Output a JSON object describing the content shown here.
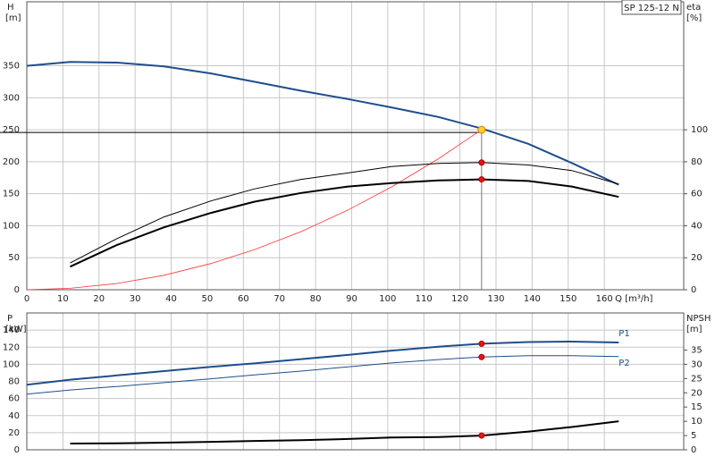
{
  "chart_data": [
    {
      "type": "line",
      "title": "SP 125-12 N",
      "y_label": "H",
      "y_unit": "[m]",
      "y2_label": "eta",
      "y2_unit": "[%]",
      "x_label": "Q [m³/h]",
      "xlim": [
        0,
        182
      ],
      "xticks": [
        0,
        10,
        20,
        30,
        40,
        50,
        60,
        70,
        80,
        90,
        100,
        110,
        120,
        130,
        140,
        150,
        160
      ],
      "ylim": [
        0,
        450
      ],
      "yticks": [
        0,
        50,
        100,
        150,
        200,
        250,
        300,
        350
      ],
      "y2lim": [
        0,
        180
      ],
      "y2ticks": [
        0,
        20,
        40,
        60,
        80,
        100
      ],
      "grid": true,
      "series": [
        {
          "color": "#1f4e8c",
          "width": 2,
          "x": [
            0,
            12,
            25,
            38,
            51,
            63,
            76,
            89,
            101,
            114,
            126,
            139,
            151,
            164
          ],
          "values": [
            350,
            356,
            355,
            349,
            338,
            325,
            311,
            298,
            285,
            270,
            252,
            228,
            198,
            164
          ]
        },
        {
          "color": "#ff3333",
          "width": 0.8,
          "x": [
            0,
            12,
            25,
            38,
            51,
            63,
            76,
            89,
            101,
            114,
            126
          ],
          "values": [
            0,
            2.3,
            9.8,
            22.7,
            40.9,
            62.5,
            90.9,
            124.7,
            160.6,
            204.6,
            250
          ]
        },
        {
          "color": "#000000",
          "width": 1,
          "axis": "y2",
          "x": [
            12,
            25,
            38,
            51,
            63,
            76,
            89,
            101,
            114,
            126,
            139,
            151,
            164
          ],
          "values": [
            16.7,
            32,
            45.5,
            55.5,
            63,
            69,
            73,
            77,
            79,
            79.5,
            78,
            74.5,
            66
          ]
        },
        {
          "color": "#000000",
          "width": 2,
          "axis": "y2",
          "x": [
            12,
            25,
            38,
            51,
            63,
            76,
            89,
            101,
            114,
            126,
            139,
            151,
            164
          ],
          "values": [
            14.4,
            28,
            39,
            48,
            55,
            60.5,
            64.5,
            66.7,
            68.3,
            69,
            68,
            64.5,
            58
          ]
        }
      ],
      "duty_point": {
        "x": 126,
        "y": [
          250
        ],
        "y2": [
          79.5,
          69
        ]
      }
    },
    {
      "type": "line",
      "y_label": "P",
      "y_unit": "[kW]",
      "y2_label": "NPSH",
      "y2_unit": "[m]",
      "xlim": [
        0,
        182
      ],
      "xticks": [
        0,
        10,
        20,
        30,
        40,
        50,
        60,
        70,
        80,
        90,
        100,
        110,
        120,
        130,
        140,
        150,
        160
      ],
      "ylim": [
        0,
        160
      ],
      "yticks": [
        0,
        20,
        40,
        60,
        80,
        100,
        120,
        140
      ],
      "y2lim": [
        0,
        48
      ],
      "y2ticks": [
        0,
        5,
        10,
        15,
        20,
        25,
        30,
        35
      ],
      "grid": true,
      "series": [
        {
          "name": "P1",
          "color": "#1f4e8c",
          "width": 2,
          "x": [
            0,
            12,
            25,
            38,
            51,
            63,
            76,
            89,
            101,
            114,
            126,
            139,
            151,
            164
          ],
          "values": [
            76,
            82,
            87,
            92,
            97,
            101,
            106,
            111,
            116,
            120.6,
            124,
            126,
            126.5,
            125.5
          ]
        },
        {
          "name": "P2",
          "color": "#1f4e8c",
          "width": 1,
          "x": [
            0,
            12,
            25,
            38,
            51,
            63,
            76,
            89,
            101,
            114,
            126,
            139,
            151,
            164
          ],
          "values": [
            65,
            70,
            74,
            78.5,
            83,
            87.5,
            92,
            97,
            101.5,
            105.5,
            108.5,
            110,
            110,
            109
          ]
        },
        {
          "color": "#000000",
          "width": 2,
          "axis": "y2",
          "x": [
            12,
            25,
            38,
            51,
            63,
            76,
            89,
            101,
            114,
            126,
            139,
            151,
            164
          ],
          "values": [
            2.2,
            2.3,
            2.5,
            2.8,
            3.1,
            3.4,
            3.8,
            4.3,
            4.5,
            5,
            6.4,
            8,
            10
          ]
        }
      ],
      "duty_point": {
        "x": 126,
        "y": [
          124,
          108.5
        ],
        "y2": [
          5
        ]
      }
    }
  ]
}
